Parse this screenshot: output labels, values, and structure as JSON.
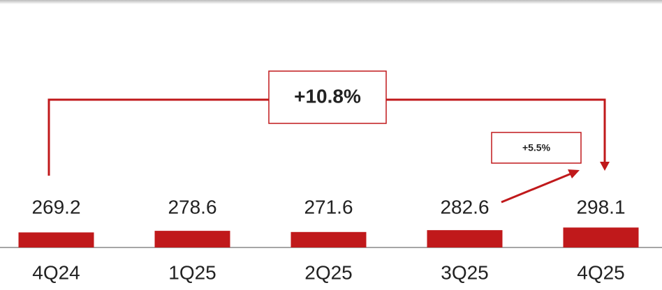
{
  "chart_data": {
    "type": "bar",
    "categories": [
      "4Q24",
      "1Q25",
      "2Q25",
      "3Q25",
      "4Q25"
    ],
    "values": [
      269.2,
      278.6,
      271.6,
      282.6,
      298.1
    ],
    "color": "#c0191b",
    "ylim": [
      180,
      1480
    ],
    "annotations": [
      "+10.8%",
      "+5.5%"
    ]
  }
}
